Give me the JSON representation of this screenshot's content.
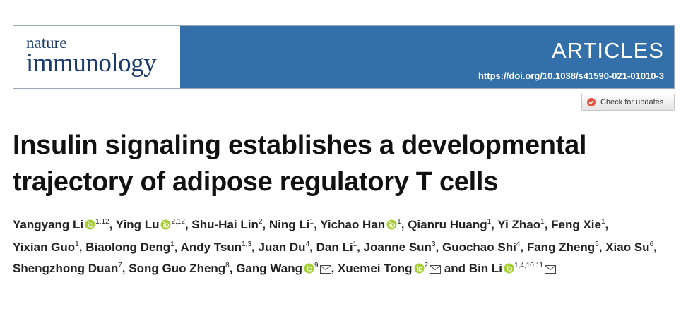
{
  "header": {
    "journal": [
      "nature",
      "immunology"
    ],
    "article_type": "ARTICLES",
    "doi": "https://doi.org/10.1038/s41590-021-01010-3"
  },
  "check_updates": "Check for updates",
  "title": [
    "Insulin signaling establishes a developmental",
    "trajectory of adipose regulatory T cells"
  ],
  "separator": ",",
  "conjunction": "and",
  "authors": [
    {
      "name": "Yangyang Li",
      "affil": "1,12",
      "orcid": true
    },
    {
      "name": "Ying Lu",
      "affil": "2,12",
      "orcid": true
    },
    {
      "name": "Shu-Hai Lin",
      "affil": "2"
    },
    {
      "name": "Ning Li",
      "affil": "1"
    },
    {
      "name": "Yichao Han",
      "affil": "1",
      "orcid": true
    },
    {
      "name": "Qianru Huang",
      "affil": "1"
    },
    {
      "name": "Yi Zhao",
      "affil": "1"
    },
    {
      "name": "Feng Xie",
      "affil": "1"
    },
    {
      "name": "Yixian Guo",
      "affil": "1"
    },
    {
      "name": "Biaolong Deng",
      "affil": "1"
    },
    {
      "name": "Andy Tsun",
      "affil": "1,3"
    },
    {
      "name": "Juan Du",
      "affil": "4"
    },
    {
      "name": "Dan Li",
      "affil": "1"
    },
    {
      "name": "Joanne Sun",
      "affil": "3"
    },
    {
      "name": "Guochao Shi",
      "affil": "4"
    },
    {
      "name": "Fang Zheng",
      "affil": "5"
    },
    {
      "name": "Xiao Su",
      "affil": "6"
    },
    {
      "name": "Shengzhong Duan",
      "affil": "7"
    },
    {
      "name": "Song Guo Zheng",
      "affil": "8"
    },
    {
      "name": "Gang Wang",
      "affil": "9",
      "orcid": true,
      "corresponding": true
    },
    {
      "name": "Xuemei Tong",
      "affil": "2",
      "orcid": true,
      "corresponding": true
    },
    {
      "name": "Bin Li",
      "affil": "1,4,10,11",
      "orcid": true,
      "corresponding": true
    }
  ]
}
